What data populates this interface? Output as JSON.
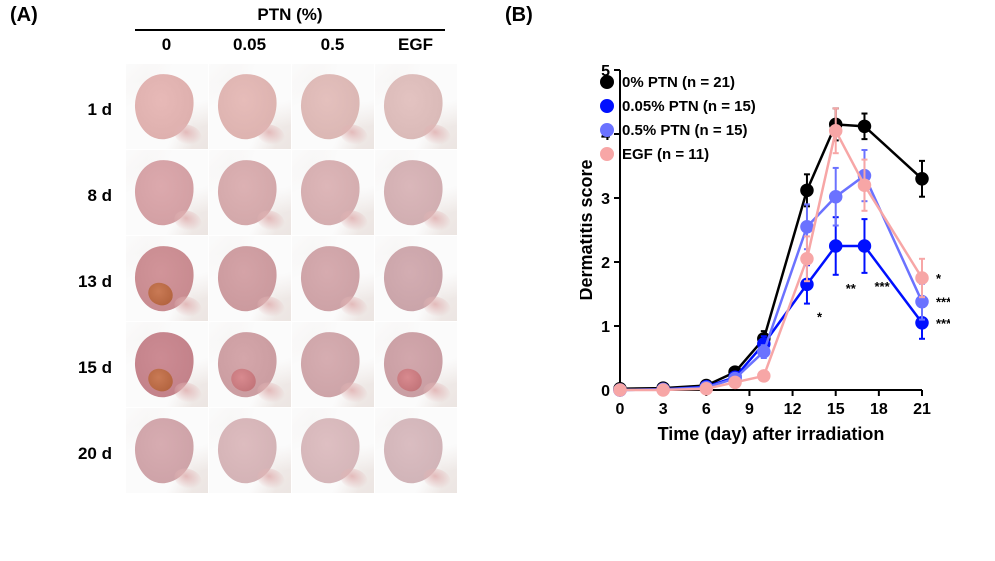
{
  "panelA": {
    "label": "(A)",
    "header": "PTN (%)",
    "columns": [
      "0",
      "0.05",
      "0.5",
      "EGF"
    ],
    "rows": [
      "1 d",
      "8 d",
      "13 d",
      "15 d",
      "20 d"
    ],
    "skin_colors": [
      [
        "#e7b9b7",
        "#e6bcb9",
        "#e4c0bd",
        "#e3c3c1"
      ],
      [
        "#dca9ad",
        "#dcb1b3",
        "#ddb6b8",
        "#dab7ba"
      ],
      [
        "#d19499",
        "#d4a3a7",
        "#d6abaf",
        "#d3adb2"
      ],
      [
        "#cc8b93",
        "#d4a6aa",
        "#d6adb1",
        "#d2a7ac"
      ],
      [
        "#d7acb1",
        "#ddbcbf",
        "#debfc2",
        "#dabdc1"
      ]
    ],
    "lesion_colors": [
      [
        null,
        null,
        null,
        null
      ],
      [
        null,
        null,
        null,
        null
      ],
      [
        "#c97a55",
        null,
        null,
        null
      ],
      [
        "#c97a55",
        "#d88a8f",
        null,
        "#d88a8f"
      ],
      [
        null,
        null,
        null,
        null
      ]
    ],
    "cell_bg": "#f4efec",
    "fur_color": "#fbfbfb"
  },
  "panelB": {
    "label": "(B)",
    "x_title": "Time (day) after irradiation",
    "y_title": "Dermatitis score",
    "xlim": [
      0,
      21
    ],
    "x_ticks": [
      0,
      3,
      6,
      9,
      12,
      15,
      18,
      21
    ],
    "ylim": [
      0,
      5
    ],
    "y_ticks": [
      0,
      1,
      2,
      3,
      4,
      5
    ],
    "tick_fontsize": 16,
    "axis_title_fontsize": 18,
    "axis_color": "#000000",
    "background_color": "#ffffff",
    "marker_radius": 6,
    "line_width": 2.5,
    "error_cap": 6,
    "legend_fontsize": 15,
    "series": [
      {
        "name": "0% PTN (n = 21)",
        "color": "#000000",
        "fill": "#000000",
        "x": [
          0,
          3,
          6,
          8,
          10,
          13,
          15,
          17,
          21
        ],
        "y": [
          0.02,
          0.03,
          0.07,
          0.28,
          0.8,
          3.12,
          4.15,
          4.12,
          3.3
        ],
        "err": [
          0,
          0,
          0,
          0.05,
          0.12,
          0.25,
          0.25,
          0.2,
          0.28
        ]
      },
      {
        "name": "0.05% PTN (n = 15)",
        "color": "#0010ff",
        "fill": "#0010ff",
        "x": [
          0,
          3,
          6,
          8,
          10,
          13,
          15,
          17,
          21
        ],
        "y": [
          0.0,
          0.01,
          0.05,
          0.2,
          0.72,
          1.65,
          2.25,
          2.25,
          1.05
        ],
        "err": [
          0,
          0,
          0,
          0.05,
          0.12,
          0.3,
          0.45,
          0.42,
          0.25
        ],
        "sig": {
          "13": "*",
          "15": "**",
          "17": "***",
          "21": "***"
        }
      },
      {
        "name": "0.5% PTN (n = 15)",
        "color": "#6b72ff",
        "fill": "#6b72ff",
        "x": [
          0,
          3,
          6,
          8,
          10,
          13,
          15,
          17,
          21
        ],
        "y": [
          0.0,
          0.01,
          0.04,
          0.18,
          0.6,
          2.55,
          3.02,
          3.35,
          1.38
        ],
        "err": [
          0,
          0,
          0,
          0.05,
          0.1,
          0.35,
          0.45,
          0.4,
          0.28
        ],
        "sig": {
          "21": "***"
        }
      },
      {
        "name": "EGF (n = 11)",
        "color": "#f7a6a6",
        "fill": "#f7a6a6",
        "x": [
          0,
          3,
          6,
          8,
          10,
          13,
          15,
          17,
          21
        ],
        "y": [
          0.0,
          0.0,
          0.02,
          0.12,
          0.22,
          2.05,
          4.05,
          3.2,
          1.75
        ],
        "err": [
          0,
          0,
          0,
          0.04,
          0.08,
          0.35,
          0.35,
          0.4,
          0.3
        ],
        "sig": {
          "21": "*"
        }
      }
    ],
    "sig_order_at_21": [
      "EGF (n = 11)",
      "0.5% PTN (n = 15)",
      "0.05% PTN (n = 15)"
    ],
    "sig_colors_at_21": [
      "#f7a6a6",
      "#6b72ff",
      "#0010ff"
    ]
  }
}
